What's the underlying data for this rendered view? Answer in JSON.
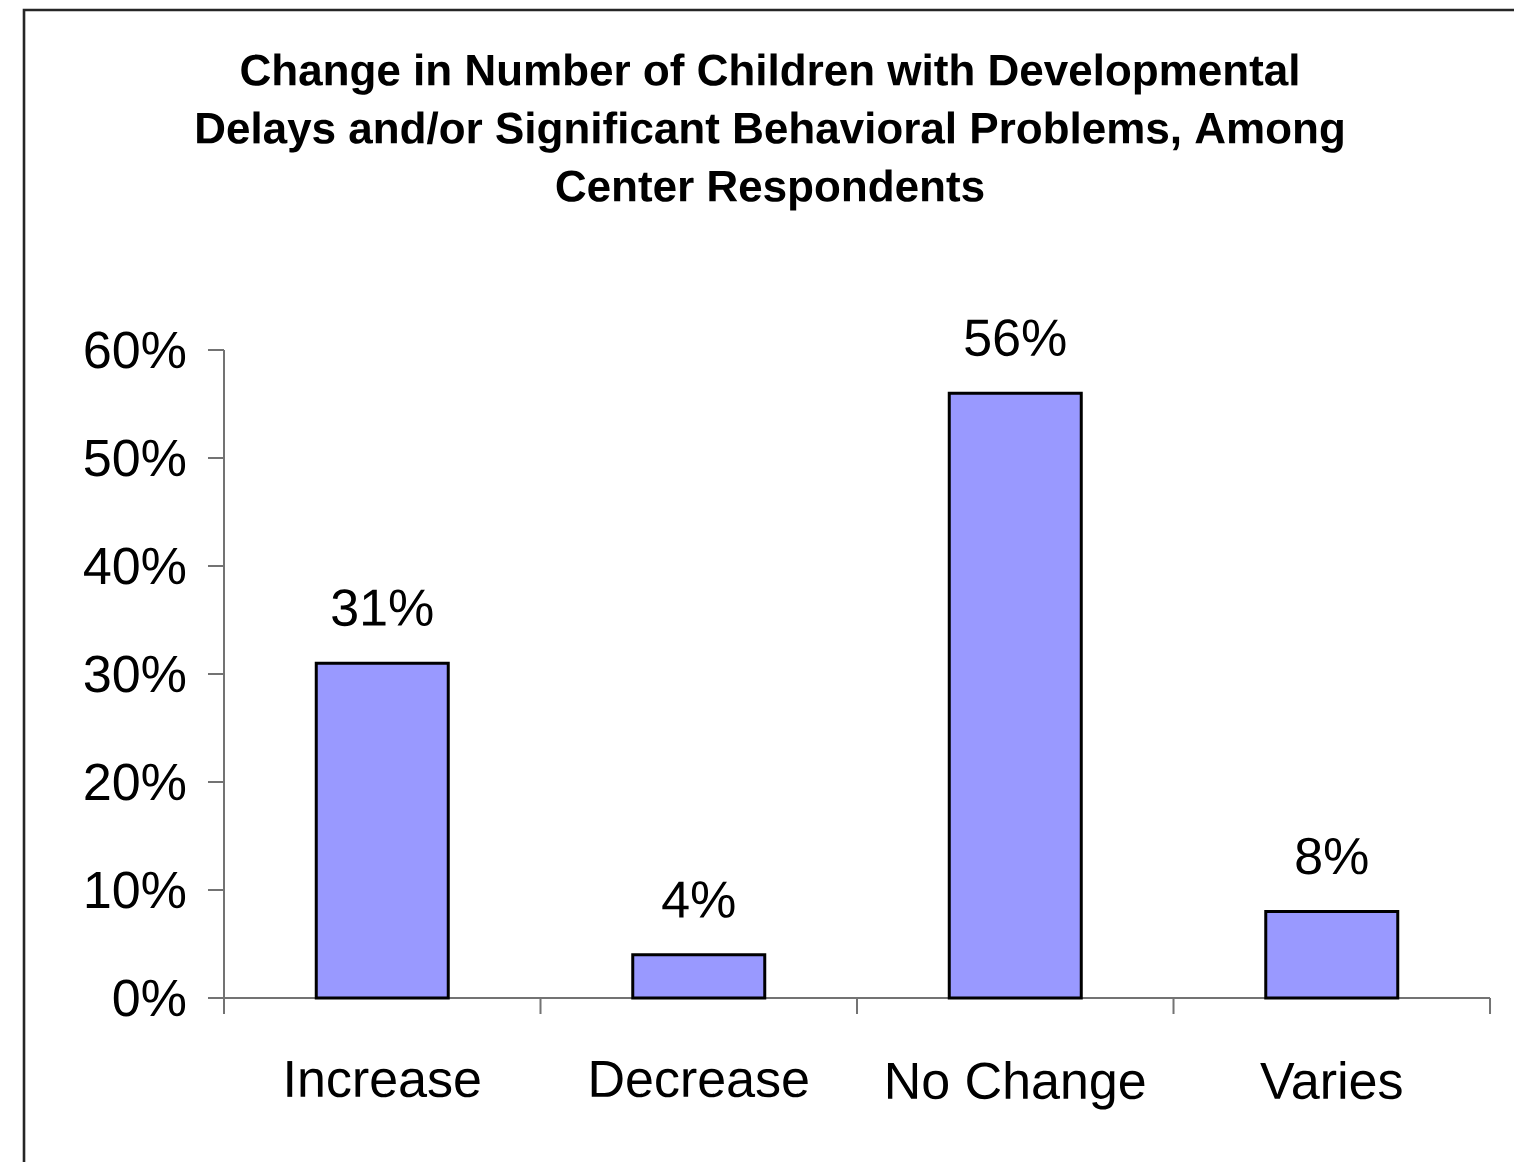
{
  "chart_data": {
    "type": "bar",
    "title": "Change in Number of Children with Developmental Delays and/or Significant Behavioral Problems, Among Center Respondents",
    "categories": [
      "Increase",
      "Decrease",
      "No Change",
      "Varies"
    ],
    "values": [
      31,
      4,
      56,
      8
    ],
    "color": "#9999ff",
    "ylim": [
      0,
      60
    ],
    "yticks": [
      {
        "value": 0,
        "label": "0%"
      },
      {
        "value": 10,
        "label": "10%"
      },
      {
        "value": 20,
        "label": "20%"
      },
      {
        "value": 30,
        "label": "30%"
      },
      {
        "value": 40,
        "label": "40%"
      },
      {
        "value": 50,
        "label": "50%"
      },
      {
        "value": 60,
        "label": "60%"
      }
    ],
    "value_labels": [
      "31%",
      "4%",
      "56%",
      "8%"
    ]
  }
}
